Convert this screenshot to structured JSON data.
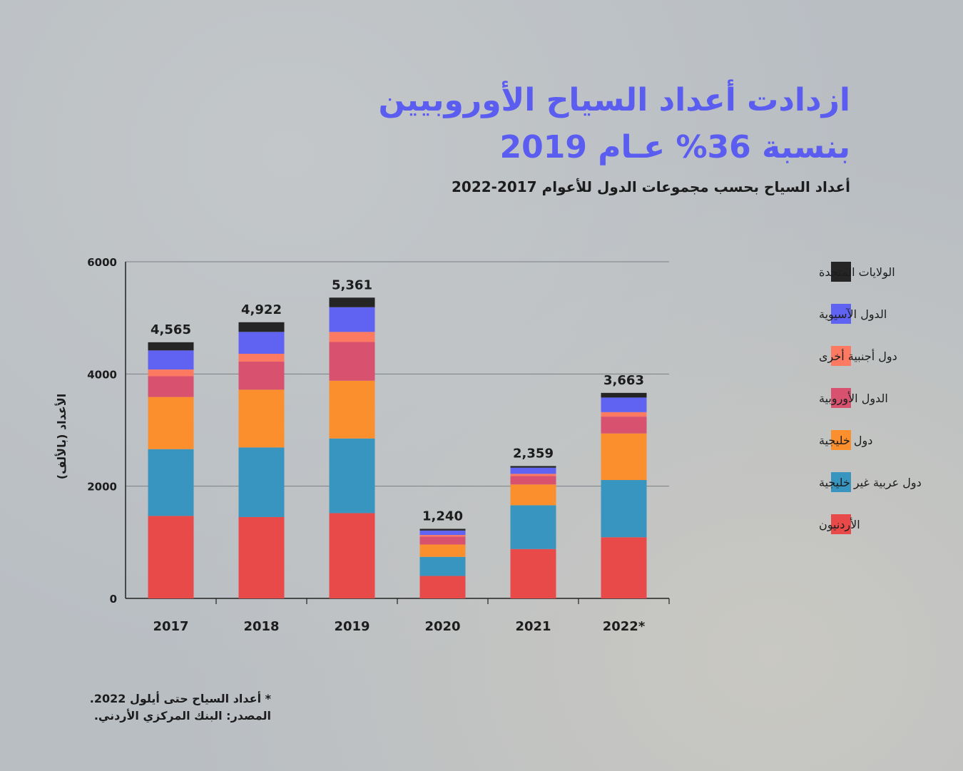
{
  "title_line1": "ازدادت أعداد السياح الأوروبيين",
  "title_line2": "بنسبة 36% عـام 2019",
  "subtitle": "أعداد السياح بحسب مجموعات الدول للأعوام 2017-2022",
  "footnote_line1": "* أعداد السياح حتى أيلول 2022.",
  "footnote_line2": "المصدر: البنك المركزي الأردني.",
  "chart_data": {
    "type": "bar",
    "stacked": true,
    "ylabel": "الأعداد (بالألف)",
    "ylim": [
      0,
      6000
    ],
    "yticks": [
      0,
      2000,
      4000,
      6000
    ],
    "grid": true,
    "legend_position": "right",
    "categories": [
      "2017",
      "2018",
      "2019",
      "2020",
      "2021",
      "2022*"
    ],
    "totals": [
      4565,
      4922,
      5361,
      1240,
      2359,
      3663
    ],
    "total_labels": [
      "4,565",
      "4,922",
      "5,361",
      "1,240",
      "2,359",
      "3,663"
    ],
    "series": [
      {
        "name": "الأردنيون",
        "color": "#e84a4a",
        "values": [
          1470,
          1450,
          1520,
          400,
          880,
          1090
        ]
      },
      {
        "name": "دول عربية غير خليجية",
        "color": "#3795c0",
        "values": [
          1190,
          1240,
          1330,
          340,
          780,
          1020
        ]
      },
      {
        "name": "دول خليجية",
        "color": "#fb8f2e",
        "values": [
          930,
          1030,
          1030,
          220,
          370,
          830
        ]
      },
      {
        "name": "الدول الأوروبية",
        "color": "#d85270",
        "values": [
          370,
          500,
          690,
          140,
          150,
          300
        ]
      },
      {
        "name": "دول أجنبية أخرى",
        "color": "#fc7a62",
        "values": [
          120,
          140,
          180,
          30,
          40,
          80
        ]
      },
      {
        "name": "الدول الآسيوية",
        "color": "#6062f2",
        "values": [
          340,
          390,
          440,
          80,
          110,
          260
        ]
      },
      {
        "name": "الولايات المتحدة",
        "color": "#252525",
        "values": [
          145,
          172,
          171,
          30,
          29,
          83
        ]
      }
    ]
  }
}
